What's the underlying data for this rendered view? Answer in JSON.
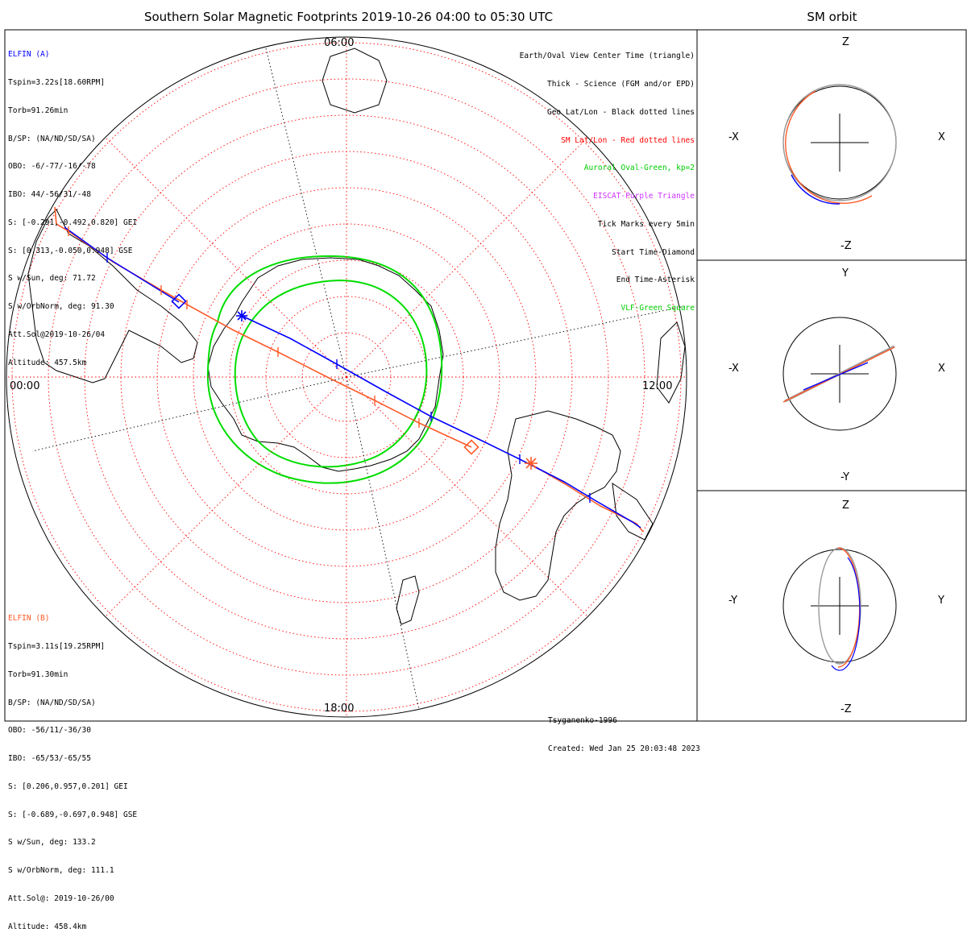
{
  "title": "Southern Solar Magnetic Footprints 2019-10-26 04:00 to 05:30 UTC",
  "side_title": "SM orbit",
  "clock_labels": {
    "top": "06:00",
    "left": "00:00",
    "right": "12:00",
    "bottom": "18:00"
  },
  "elfin_a": {
    "header": "ELFIN (A)",
    "color": "#0000ff",
    "lines": [
      "Tspin=3.22s[18.60RPM]",
      "Torb=91.26min",
      "B/SP: (NA/ND/SD/SA)",
      "OBO: -6/-77/-16/-78",
      "IBO: 44/-56/31/-48",
      "S: [-0.291,-0.492,0.820] GEI",
      "S: [0.313,-0.050,0.948] GSE",
      "S w/Sun, deg: 71.72",
      "S w/OrbNorm, deg: 91.30",
      "Att.Sol@2019-10-26/04",
      "Altitude: 457.5km"
    ]
  },
  "elfin_b": {
    "header": "ELFIN (B)",
    "color": "#ff5a28",
    "lines": [
      "Tspin=3.11s[19.25RPM]",
      "Torb=91.30min",
      "B/SP: (NA/ND/SD/SA)",
      "OBO: -56/11/-36/30",
      "IBO: -65/53/-65/55",
      "S: [0.206,0.957,0.201] GEI",
      "S: [-0.689,-0.697,0.948] GSE",
      "S w/Sun, deg: 133.2",
      "S w/OrbNorm, deg: 111.1",
      "Att.Sol@: 2019-10-26/00",
      "Altitude: 458.4km"
    ]
  },
  "legend": [
    {
      "text": "Earth/Oval View Center Time (triangle)",
      "color": "#000000"
    },
    {
      "text": "Thick - Science (FGM and/or EPD)",
      "color": "#000000"
    },
    {
      "text": "Geo Lat/Lon - Black dotted lines",
      "color": "#000000"
    },
    {
      "text": "SM Lat/Lon - Red dotted lines",
      "color": "#ff0000"
    },
    {
      "text": "Auroral Oval-Green, kp=2",
      "color": "#00cc00"
    },
    {
      "text": "EISCAT-Purple Triangle",
      "color": "#cc33ff"
    },
    {
      "text": "Tick Marks every 5min",
      "color": "#000000"
    },
    {
      "text": "Start Time-Diamond",
      "color": "#000000"
    },
    {
      "text": "End Time-Asterisk",
      "color": "#000000"
    },
    {
      "text": "VLF-Green Square",
      "color": "#00cc00"
    }
  ],
  "credits": {
    "model": "Tsyganenko-1996",
    "created": "Created: Wed Jan 25 20:03:48 2023"
  },
  "orbit_panels": [
    {
      "top": "Z",
      "bottom": "-Z",
      "left": "-X",
      "right": "X"
    },
    {
      "top": "Y",
      "bottom": "-Y",
      "left": "-X",
      "right": "X"
    },
    {
      "top": "Z",
      "bottom": "-Z",
      "left": "-Y",
      "right": "Y"
    }
  ],
  "colors": {
    "sm_grid": "#ff0000",
    "oval": "#00dd00",
    "orbit_gray": "#999999"
  }
}
